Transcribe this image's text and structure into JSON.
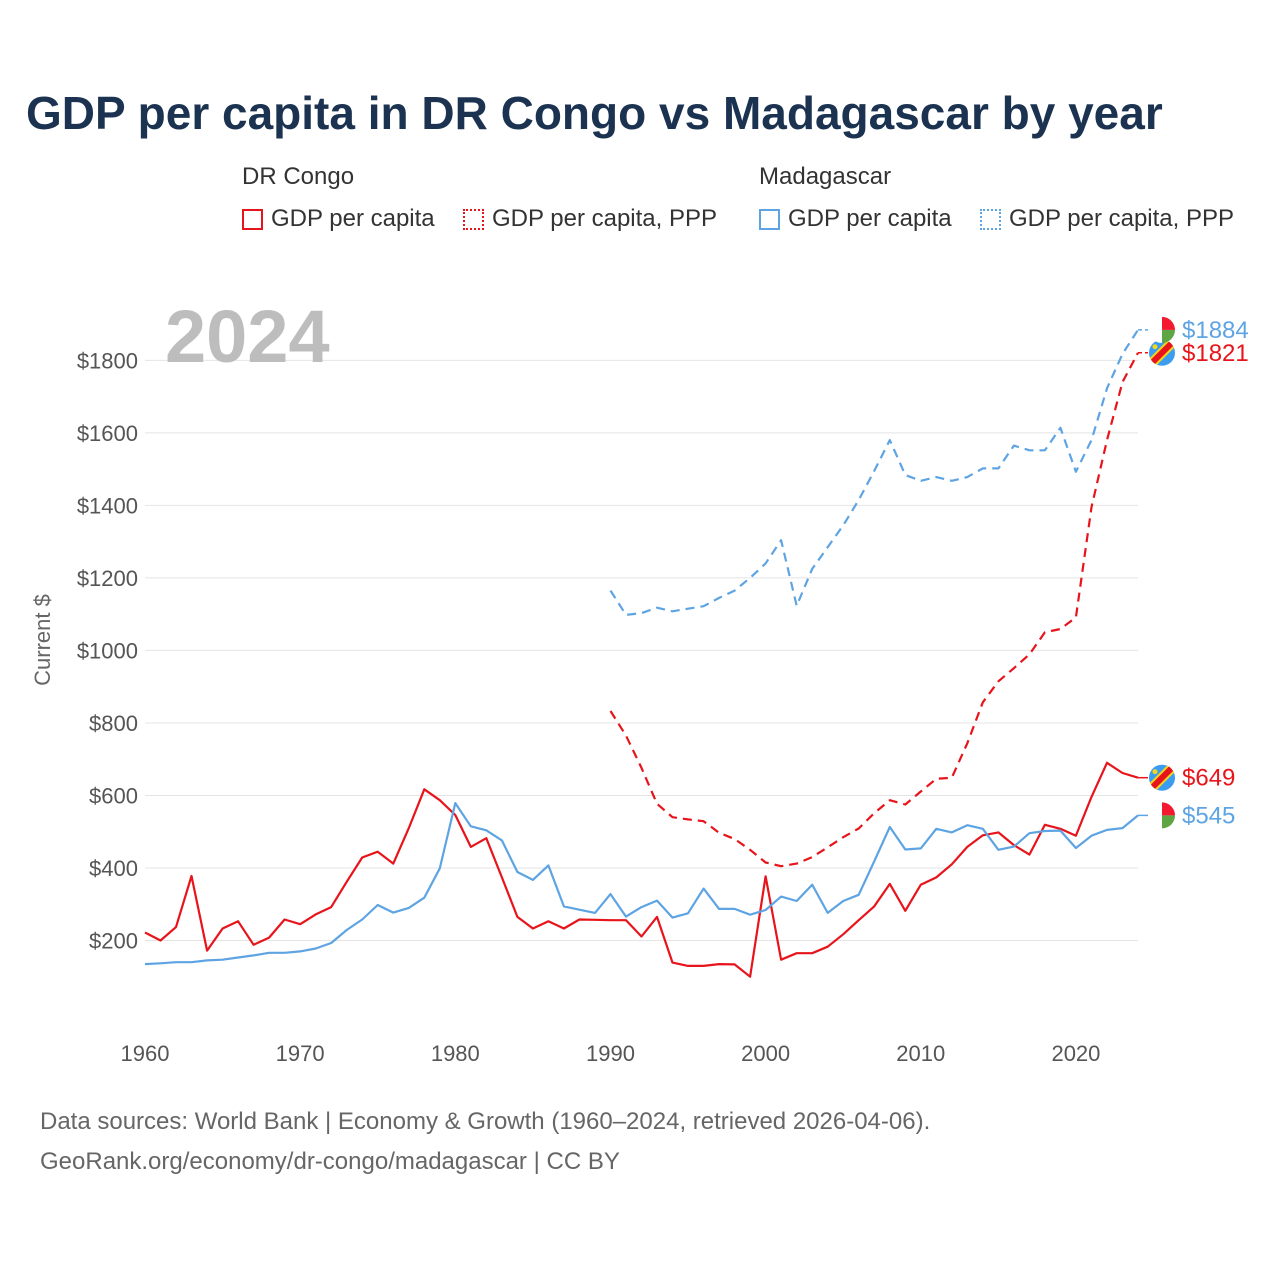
{
  "title": "GDP per capita in DR Congo vs Madagascar by year",
  "legend": {
    "groups": [
      "DR Congo",
      "Madagascar"
    ],
    "items": [
      "GDP per capita",
      "GDP per capita, PPP",
      "GDP per capita",
      "GDP per capita, PPP"
    ]
  },
  "footer": {
    "line1": "Data sources: World Bank | Economy & Growth (1960–2024, retrieved 2026-04-06).",
    "line2": "GeoRank.org/economy/dr-congo/madagascar | CC BY"
  },
  "colors": {
    "drc": "#e8141b",
    "mdg": "#5ea4e3",
    "grid": "#e4e4e4"
  },
  "chart_data": {
    "type": "line",
    "title": "GDP per capita in DR Congo vs Madagascar by year",
    "ylabel": "Current $",
    "xlabel": "",
    "year_label": "2024",
    "xlim": [
      1960,
      2024
    ],
    "ylim": [
      0,
      1950
    ],
    "x_ticks": [
      1960,
      1970,
      1980,
      1990,
      2000,
      2010,
      2020
    ],
    "y_ticks": [
      200,
      400,
      600,
      800,
      1000,
      1200,
      1400,
      1600,
      1800
    ],
    "y_tick_labels": [
      "$200",
      "$400",
      "$600",
      "$800",
      "$1000",
      "$1200",
      "$1400",
      "$1600",
      "$1800"
    ],
    "grid": true,
    "series": [
      {
        "name": "DR Congo GDP per capita",
        "country": "drc",
        "style": "solid",
        "x": [
          1960,
          1961,
          1962,
          1963,
          1964,
          1965,
          1966,
          1967,
          1968,
          1969,
          1970,
          1971,
          1972,
          1973,
          1974,
          1975,
          1976,
          1977,
          1978,
          1979,
          1980,
          1981,
          1982,
          1983,
          1984,
          1985,
          1986,
          1987,
          1988,
          1989,
          1990,
          1991,
          1992,
          1993,
          1994,
          1995,
          1996,
          1997,
          1998,
          1999,
          2000,
          2001,
          2002,
          2003,
          2004,
          2005,
          2006,
          2007,
          2008,
          2009,
          2010,
          2011,
          2012,
          2013,
          2014,
          2015,
          2016,
          2017,
          2018,
          2019,
          2020,
          2021,
          2022,
          2023,
          2024
        ],
        "values": [
          222,
          200,
          237,
          378,
          172,
          233,
          253,
          188,
          208,
          258,
          245,
          272,
          292,
          362,
          429,
          445,
          412,
          510,
          617,
          587,
          546,
          458,
          482,
          374,
          265,
          233,
          253,
          233,
          258,
          257,
          256,
          256,
          211,
          265,
          139,
          130,
          130,
          135,
          134,
          100,
          377,
          147,
          165,
          165,
          183,
          217,
          256,
          294,
          356,
          282,
          354,
          374,
          410,
          458,
          490,
          498,
          463,
          437,
          519,
          508,
          489,
          596,
          690,
          662,
          649
        ],
        "end_label": "$649"
      },
      {
        "name": "DR Congo GDP per capita, PPP",
        "country": "drc",
        "style": "dashed",
        "x": [
          1990,
          1991,
          1992,
          1993,
          1994,
          1995,
          1996,
          1997,
          1998,
          1999,
          2000,
          2001,
          2002,
          2003,
          2004,
          2005,
          2006,
          2007,
          2008,
          2009,
          2010,
          2011,
          2012,
          2013,
          2014,
          2015,
          2016,
          2017,
          2018,
          2019,
          2020,
          2021,
          2022,
          2023,
          2024
        ],
        "values": [
          833,
          765,
          676,
          577,
          540,
          534,
          529,
          497,
          480,
          450,
          415,
          405,
          412,
          430,
          457,
          485,
          509,
          551,
          587,
          575,
          611,
          646,
          649,
          744,
          857,
          915,
          951,
          989,
          1050,
          1059,
          1091,
          1395,
          1580,
          1740,
          1821
        ],
        "end_label": "$1821"
      },
      {
        "name": "Madagascar GDP per capita",
        "country": "mdg",
        "style": "solid",
        "x": [
          1960,
          1961,
          1962,
          1963,
          1964,
          1965,
          1966,
          1967,
          1968,
          1969,
          1970,
          1971,
          1972,
          1973,
          1974,
          1975,
          1976,
          1977,
          1978,
          1979,
          1980,
          1981,
          1982,
          1983,
          1984,
          1985,
          1986,
          1987,
          1988,
          1989,
          1990,
          1991,
          1992,
          1993,
          1994,
          1995,
          1996,
          1997,
          1998,
          1999,
          2000,
          2001,
          2002,
          2003,
          2004,
          2005,
          2006,
          2007,
          2008,
          2009,
          2010,
          2011,
          2012,
          2013,
          2014,
          2015,
          2016,
          2017,
          2018,
          2019,
          2020,
          2021,
          2022,
          2023,
          2024
        ],
        "values": [
          135,
          137,
          140,
          140,
          145,
          147,
          153,
          159,
          166,
          166,
          170,
          178,
          193,
          229,
          258,
          298,
          277,
          290,
          318,
          399,
          579,
          515,
          504,
          476,
          389,
          367,
          407,
          294,
          285,
          276,
          328,
          266,
          292,
          310,
          263,
          275,
          343,
          287,
          287,
          271,
          284,
          321,
          309,
          354,
          276,
          309,
          326,
          418,
          513,
          451,
          454,
          508,
          498,
          518,
          508,
          450,
          459,
          496,
          502,
          503,
          455,
          489,
          505,
          510,
          545
        ],
        "end_label": "$545"
      },
      {
        "name": "Madagascar GDP per capita, PPP",
        "country": "mdg",
        "style": "dashed",
        "x": [
          1990,
          1991,
          1992,
          1993,
          1994,
          1995,
          1996,
          1997,
          1998,
          1999,
          2000,
          2001,
          2002,
          2003,
          2004,
          2005,
          2006,
          2007,
          2008,
          2009,
          2010,
          2011,
          2012,
          2013,
          2014,
          2015,
          2016,
          2017,
          2018,
          2019,
          2020,
          2021,
          2022,
          2023,
          2024
        ],
        "values": [
          1165,
          1098,
          1103,
          1118,
          1108,
          1115,
          1122,
          1145,
          1165,
          1200,
          1240,
          1304,
          1123,
          1225,
          1285,
          1345,
          1415,
          1495,
          1580,
          1484,
          1468,
          1478,
          1468,
          1478,
          1502,
          1502,
          1565,
          1552,
          1552,
          1614,
          1493,
          1580,
          1723,
          1818,
          1884
        ],
        "end_label": "$1884"
      }
    ]
  }
}
